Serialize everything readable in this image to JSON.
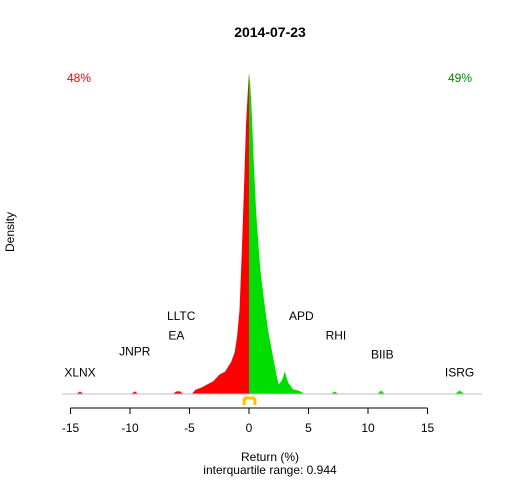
{
  "colors": {
    "negative": "#ff0000",
    "positive": "#00dd00",
    "axis": "#000000",
    "baseline": "#bebebe",
    "iqr_marker": "#ffc000"
  },
  "chart_data": {
    "type": "area",
    "title": "2014-07-23",
    "xlabel": "Return (%)",
    "ylabel": "Density",
    "subtitle": "interquartile range: 0.944",
    "xlim": [
      -16.5,
      19
    ],
    "ylim": [
      0,
      1
    ],
    "x_ticks": [
      -15,
      -10,
      -5,
      0,
      5,
      10,
      15
    ],
    "x_tick_labels": [
      "-15",
      "-10",
      "-5",
      "0",
      "5",
      "10",
      "15"
    ],
    "grid": false,
    "share_negative": "48%",
    "share_positive": "49%",
    "iqr": [
      -0.4,
      0.5
    ],
    "density": [
      {
        "x": -14.5,
        "y": 0.0
      },
      {
        "x": -14.2,
        "y": 0.008
      },
      {
        "x": -13.9,
        "y": 0.0
      },
      {
        "x": -9.9,
        "y": 0.0
      },
      {
        "x": -9.6,
        "y": 0.008
      },
      {
        "x": -9.3,
        "y": 0.0
      },
      {
        "x": -6.4,
        "y": 0.0
      },
      {
        "x": -6.1,
        "y": 0.008
      },
      {
        "x": -5.8,
        "y": 0.008
      },
      {
        "x": -5.5,
        "y": 0.0
      },
      {
        "x": -4.8,
        "y": 0.0
      },
      {
        "x": -4.5,
        "y": 0.013
      },
      {
        "x": -4.0,
        "y": 0.02
      },
      {
        "x": -3.5,
        "y": 0.03
      },
      {
        "x": -3.0,
        "y": 0.04
      },
      {
        "x": -2.5,
        "y": 0.06
      },
      {
        "x": -2.0,
        "y": 0.07
      },
      {
        "x": -1.5,
        "y": 0.1
      },
      {
        "x": -1.2,
        "y": 0.13
      },
      {
        "x": -1.0,
        "y": 0.18
      },
      {
        "x": -0.8,
        "y": 0.26
      },
      {
        "x": -0.6,
        "y": 0.45
      },
      {
        "x": -0.4,
        "y": 0.66
      },
      {
        "x": -0.25,
        "y": 0.84
      },
      {
        "x": -0.1,
        "y": 0.94
      },
      {
        "x": 0.0,
        "y": 1.0
      },
      {
        "x": 0.1,
        "y": 0.97
      },
      {
        "x": 0.25,
        "y": 0.86
      },
      {
        "x": 0.4,
        "y": 0.72
      },
      {
        "x": 0.6,
        "y": 0.57
      },
      {
        "x": 0.8,
        "y": 0.46
      },
      {
        "x": 1.0,
        "y": 0.37
      },
      {
        "x": 1.3,
        "y": 0.28
      },
      {
        "x": 1.6,
        "y": 0.2
      },
      {
        "x": 2.0,
        "y": 0.12
      },
      {
        "x": 2.3,
        "y": 0.06
      },
      {
        "x": 2.5,
        "y": 0.03
      },
      {
        "x": 2.8,
        "y": 0.045
      },
      {
        "x": 3.0,
        "y": 0.07
      },
      {
        "x": 3.3,
        "y": 0.035
      },
      {
        "x": 3.7,
        "y": 0.015
      },
      {
        "x": 4.2,
        "y": 0.01
      },
      {
        "x": 4.7,
        "y": 0.0
      },
      {
        "x": 6.9,
        "y": 0.0
      },
      {
        "x": 7.2,
        "y": 0.008
      },
      {
        "x": 7.5,
        "y": 0.0
      },
      {
        "x": 10.8,
        "y": 0.0
      },
      {
        "x": 11.1,
        "y": 0.011
      },
      {
        "x": 11.4,
        "y": 0.0
      },
      {
        "x": 17.3,
        "y": 0.0
      },
      {
        "x": 17.7,
        "y": 0.011
      },
      {
        "x": 18.1,
        "y": 0.0
      }
    ],
    "annotations": [
      {
        "label": "XLNX",
        "x": -14.2,
        "y": 0.055
      },
      {
        "label": "JNPR",
        "x": -9.6,
        "y": 0.12
      },
      {
        "label": "LLTC",
        "x": -5.7,
        "y": 0.23
      },
      {
        "label": "EA",
        "x": -6.1,
        "y": 0.17
      },
      {
        "label": "APD",
        "x": 4.4,
        "y": 0.23
      },
      {
        "label": "RHI",
        "x": 7.3,
        "y": 0.17
      },
      {
        "label": "BIIB",
        "x": 11.2,
        "y": 0.11
      },
      {
        "label": "ISRG",
        "x": 17.7,
        "y": 0.055
      }
    ]
  }
}
